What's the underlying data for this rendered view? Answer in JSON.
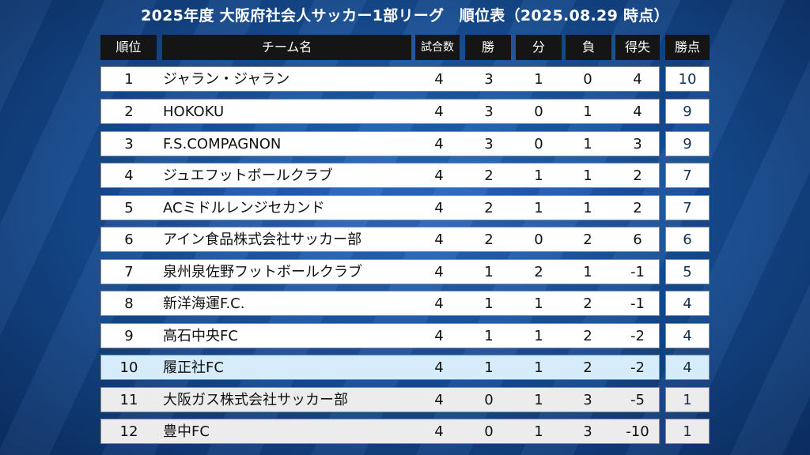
{
  "title": "2025年度 大阪府社会人サッカー1部リーグ　順位表（2025.08.29 時点）",
  "headers": {
    "rank": "順位",
    "team": "チーム名",
    "played": "試合数",
    "win": "勝",
    "draw": "分",
    "loss": "負",
    "goal_diff": "得失",
    "points": "勝点"
  },
  "rows": [
    {
      "rank": "1",
      "team": "ジャラン・ジャラン",
      "played": "4",
      "win": "3",
      "draw": "1",
      "loss": "0",
      "goal_diff": "4",
      "points": "10"
    },
    {
      "rank": "2",
      "team": "HOKOKU",
      "played": "4",
      "win": "3",
      "draw": "0",
      "loss": "1",
      "goal_diff": "4",
      "points": "9"
    },
    {
      "rank": "3",
      "team": "F.S.COMPAGNON",
      "played": "4",
      "win": "3",
      "draw": "0",
      "loss": "1",
      "goal_diff": "3",
      "points": "9"
    },
    {
      "rank": "4",
      "team": "ジュエフットボールクラブ",
      "played": "4",
      "win": "2",
      "draw": "1",
      "loss": "1",
      "goal_diff": "2",
      "points": "7"
    },
    {
      "rank": "5",
      "team": "ACミドルレンジセカンド",
      "played": "4",
      "win": "2",
      "draw": "1",
      "loss": "1",
      "goal_diff": "2",
      "points": "7"
    },
    {
      "rank": "6",
      "team": "アイン食品株式会社サッカー部",
      "played": "4",
      "win": "2",
      "draw": "0",
      "loss": "2",
      "goal_diff": "6",
      "points": "6"
    },
    {
      "rank": "7",
      "team": "泉州泉佐野フットボールクラブ",
      "played": "4",
      "win": "1",
      "draw": "2",
      "loss": "1",
      "goal_diff": "-1",
      "points": "5"
    },
    {
      "rank": "8",
      "team": "新洋海運F.C.",
      "played": "4",
      "win": "1",
      "draw": "1",
      "loss": "2",
      "goal_diff": "-1",
      "points": "4"
    },
    {
      "rank": "9",
      "team": "高石中央FC",
      "played": "4",
      "win": "1",
      "draw": "1",
      "loss": "2",
      "goal_diff": "-2",
      "points": "4"
    },
    {
      "rank": "10",
      "team": "履正社FC",
      "played": "4",
      "win": "1",
      "draw": "1",
      "loss": "2",
      "goal_diff": "-2",
      "points": "4"
    },
    {
      "rank": "11",
      "team": "大阪ガス株式会社サッカー部",
      "played": "4",
      "win": "0",
      "draw": "1",
      "loss": "3",
      "goal_diff": "-5",
      "points": "1"
    },
    {
      "rank": "12",
      "team": "豊中FC",
      "played": "4",
      "win": "0",
      "draw": "1",
      "loss": "3",
      "goal_diff": "-10",
      "points": "1"
    }
  ],
  "colors": {
    "background": "#1a4f96",
    "header": "#151515",
    "highlight_row": "#d6ecfa",
    "relegation_row": "#ececec"
  }
}
